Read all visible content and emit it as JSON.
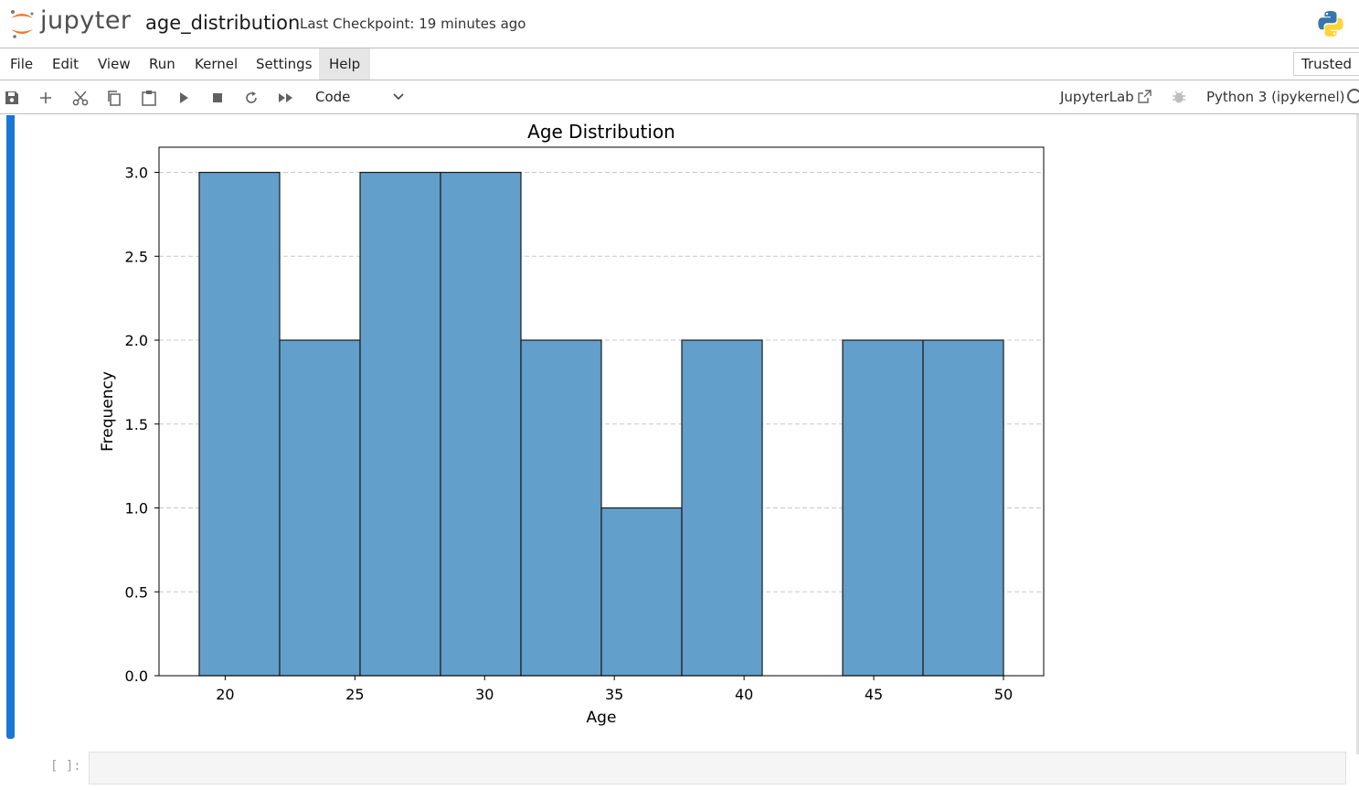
{
  "app": {
    "brand": "jupyter",
    "notebook_title": "age_distribution",
    "checkpoint": "Last Checkpoint: 19 minutes ago"
  },
  "menu": {
    "items": [
      {
        "label": "File"
      },
      {
        "label": "Edit"
      },
      {
        "label": "View"
      },
      {
        "label": "Run"
      },
      {
        "label": "Kernel"
      },
      {
        "label": "Settings"
      },
      {
        "label": "Help",
        "active": true
      }
    ],
    "trusted": "Trusted"
  },
  "toolbar": {
    "buttons": [
      "save-icon",
      "add-icon",
      "cut-icon",
      "copy-icon",
      "paste-icon",
      "run-icon",
      "stop-icon",
      "restart-icon",
      "fast-forward-icon"
    ],
    "cell_type": "Code",
    "jupyterlab_link": "JupyterLab",
    "kernel_name": "Python 3 (ipykernel)"
  },
  "colors": {
    "accent": "#1976d2",
    "bar_fill": "#629fca",
    "bar_edge": "#1a1a1a"
  },
  "chart_data": {
    "type": "bar",
    "title": "Age Distribution",
    "xlabel": "Age",
    "ylabel": "Frequency",
    "bins": [
      {
        "x0": 19.0,
        "x1": 22.1,
        "count": 3
      },
      {
        "x0": 22.1,
        "x1": 25.2,
        "count": 2
      },
      {
        "x0": 25.2,
        "x1": 28.3,
        "count": 3
      },
      {
        "x0": 28.3,
        "x1": 31.4,
        "count": 3
      },
      {
        "x0": 31.4,
        "x1": 34.5,
        "count": 2
      },
      {
        "x0": 34.5,
        "x1": 37.6,
        "count": 1
      },
      {
        "x0": 37.6,
        "x1": 40.7,
        "count": 2
      },
      {
        "x0": 40.7,
        "x1": 43.8,
        "count": 0
      },
      {
        "x0": 43.8,
        "x1": 46.9,
        "count": 2
      },
      {
        "x0": 46.9,
        "x1": 50.0,
        "count": 2
      }
    ],
    "xlim": [
      17.45,
      51.55
    ],
    "ylim": [
      0,
      3.15
    ],
    "xticks": [
      20,
      25,
      30,
      35,
      40,
      45,
      50
    ],
    "yticks": [
      0.0,
      0.5,
      1.0,
      1.5,
      2.0,
      2.5,
      3.0
    ],
    "grid": "y-dashed"
  },
  "cell": {
    "prompt": "[ ]:"
  }
}
